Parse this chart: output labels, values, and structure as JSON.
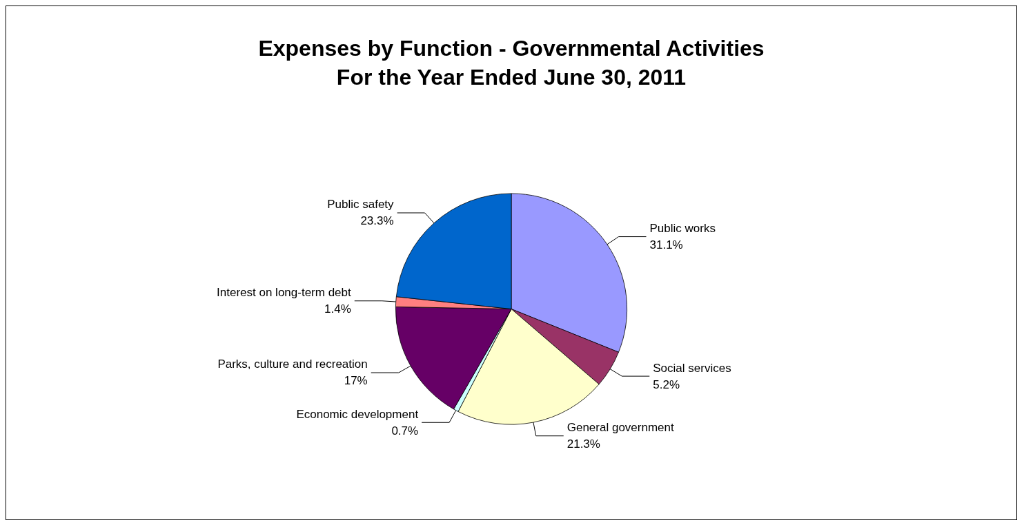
{
  "chart_data": {
    "type": "pie",
    "title": "Expenses by Function - Governmental Activities",
    "subtitle": "For the Year Ended June 30, 2011",
    "categories": [
      "Public works",
      "Social services",
      "General government",
      "Economic development",
      "Parks, culture and recreation",
      "Interest on long-term debt",
      "Public safety"
    ],
    "values": [
      31.1,
      5.2,
      21.3,
      0.7,
      17,
      1.4,
      23.3
    ],
    "colors": [
      "#9999ff",
      "#993366",
      "#ffffcc",
      "#ccffff",
      "#660066",
      "#ff8080",
      "#0066cc"
    ],
    "value_labels": [
      "31.1%",
      "5.2%",
      "21.3%",
      "0.7%",
      "17%",
      "1.4%",
      "23.3%"
    ]
  }
}
